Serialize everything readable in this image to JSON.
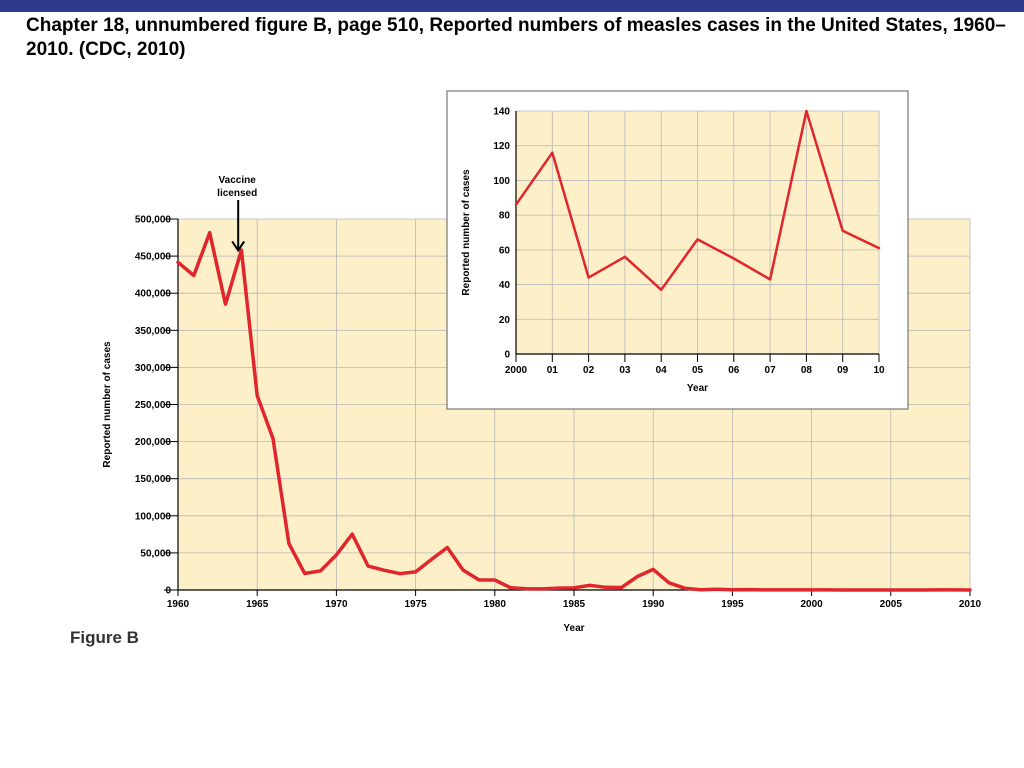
{
  "slide": {
    "title": "Chapter 18, unnumbered figure B, page 510, Reported numbers of measles cases in the United States, 1960–2010. (CDC, 2010)",
    "figure_label": "Figure B"
  },
  "colors": {
    "top_bar": "#2e3a8c",
    "plot_background": "#fdefc8",
    "line": "#e0262c",
    "grid": "#b8b8b8"
  },
  "chart_data": [
    {
      "id": "main",
      "type": "line",
      "title": "",
      "xlabel": "Year",
      "ylabel": "Reported number of cases",
      "xlim": [
        1960,
        2010
      ],
      "ylim": [
        0,
        500000
      ],
      "grid": true,
      "x_ticks": [
        1960,
        1965,
        1970,
        1975,
        1980,
        1985,
        1990,
        1995,
        2000,
        2005,
        2010
      ],
      "x_tick_labels": [
        "1960",
        "1965",
        "1970",
        "1975",
        "1980",
        "1985",
        "1990",
        "1995",
        "2000",
        "2005",
        "2010"
      ],
      "y_ticks": [
        0,
        50000,
        100000,
        150000,
        200000,
        250000,
        300000,
        350000,
        400000,
        450000,
        500000
      ],
      "y_tick_labels": [
        "0",
        "50,000",
        "100,000",
        "150,000",
        "200,000",
        "250,000",
        "300,000",
        "350,000",
        "400,000",
        "450,000",
        "500,000"
      ],
      "annotation": {
        "text_lines": [
          "Vaccine",
          "licensed"
        ],
        "x": 1963.8,
        "y": 455000
      },
      "series": [
        {
          "x": [
            1960,
            1961,
            1962,
            1963,
            1964,
            1965,
            1966,
            1967,
            1968,
            1969,
            1970,
            1971,
            1972,
            1973,
            1974,
            1975,
            1976,
            1977,
            1978,
            1979,
            1980,
            1981,
            1982,
            1983,
            1984,
            1985,
            1986,
            1987,
            1988,
            1989,
            1990,
            1991,
            1992,
            1993,
            1994,
            1995,
            1996,
            1997,
            1998,
            1999,
            2000,
            2001,
            2002,
            2003,
            2004,
            2005,
            2006,
            2007,
            2008,
            2009,
            2010
          ],
          "values": [
            441703,
            423919,
            481530,
            385156,
            458083,
            261904,
            204136,
            62705,
            22231,
            25826,
            47351,
            75290,
            32275,
            26690,
            22094,
            24374,
            41126,
            57345,
            26871,
            13597,
            13506,
            3124,
            1714,
            1497,
            2587,
            2822,
            6282,
            3655,
            3396,
            18193,
            27786,
            9643,
            2237,
            312,
            963,
            309,
            508,
            138,
            100,
            100,
            86,
            116,
            44,
            56,
            37,
            66,
            55,
            43,
            140,
            71,
            61
          ]
        }
      ]
    },
    {
      "id": "inset",
      "type": "line",
      "title": "",
      "xlabel": "Year",
      "ylabel": "Reported number of cases",
      "xlim": [
        2000,
        2010
      ],
      "ylim": [
        0,
        140
      ],
      "grid": true,
      "x_ticks": [
        2000,
        2001,
        2002,
        2003,
        2004,
        2005,
        2006,
        2007,
        2008,
        2009,
        2010
      ],
      "x_tick_labels": [
        "2000",
        "01",
        "02",
        "03",
        "04",
        "05",
        "06",
        "07",
        "08",
        "09",
        "10"
      ],
      "y_ticks": [
        0,
        20,
        40,
        60,
        80,
        100,
        120,
        140
      ],
      "y_tick_labels": [
        "0",
        "20",
        "40",
        "60",
        "80",
        "100",
        "120",
        "140"
      ],
      "series": [
        {
          "x": [
            2000,
            2001,
            2002,
            2003,
            2004,
            2005,
            2006,
            2007,
            2008,
            2009,
            2010
          ],
          "values": [
            86,
            116,
            44,
            56,
            37,
            66,
            55,
            43,
            140,
            71,
            61
          ]
        }
      ]
    }
  ]
}
